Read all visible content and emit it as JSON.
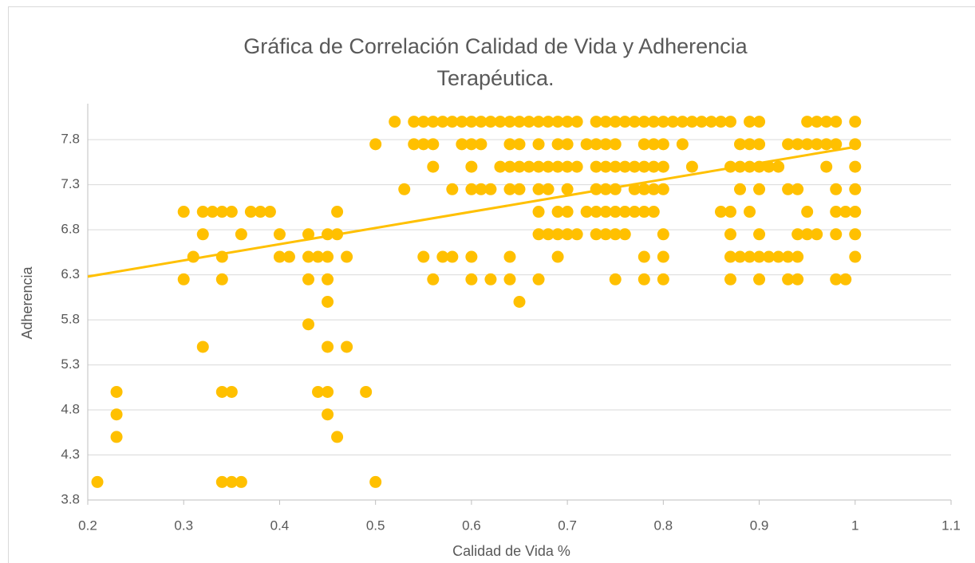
{
  "chart_data": {
    "type": "scatter",
    "title": [
      "Gráfica de Correlación Calidad de Vida y Adherencia",
      "Terapéutica."
    ],
    "xlabel": "Calidad de Vida %",
    "ylabel": "Adherencia",
    "color": "#ffc000",
    "grid": true,
    "xlim": [
      0.2,
      1.1
    ],
    "xticks": [
      0.2,
      0.3,
      0.4,
      0.5,
      0.6,
      0.7,
      0.8,
      0.9,
      1,
      1.1
    ],
    "ylim": [
      3.8,
      8.2
    ],
    "yticks": [
      3.8,
      4.3,
      4.8,
      5.3,
      5.8,
      6.3,
      6.8,
      7.3,
      7.8
    ],
    "trendline": {
      "x": [
        0.2,
        1
      ],
      "y": [
        6.28,
        7.72
      ]
    },
    "x": [
      0.21,
      0.23,
      0.23,
      0.23,
      0.3,
      0.3,
      0.31,
      0.32,
      0.32,
      0.32,
      0.33,
      0.34,
      0.34,
      0.34,
      0.34,
      0.34,
      0.35,
      0.35,
      0.35,
      0.36,
      0.36,
      0.37,
      0.38,
      0.39,
      0.4,
      0.4,
      0.41,
      0.43,
      0.43,
      0.43,
      0.43,
      0.44,
      0.44,
      0.45,
      0.45,
      0.45,
      0.45,
      0.45,
      0.45,
      0.45,
      0.46,
      0.46,
      0.46,
      0.47,
      0.47,
      0.49,
      0.5,
      0.5,
      0.52,
      0.53,
      0.54,
      0.54,
      0.55,
      0.55,
      0.55,
      0.56,
      0.56,
      0.56,
      0.56,
      0.57,
      0.57,
      0.58,
      0.58,
      0.58,
      0.59,
      0.59,
      0.6,
      0.6,
      0.6,
      0.6,
      0.6,
      0.6,
      0.61,
      0.61,
      0.61,
      0.62,
      0.62,
      0.62,
      0.63,
      0.63,
      0.64,
      0.64,
      0.64,
      0.64,
      0.64,
      0.64,
      0.65,
      0.65,
      0.65,
      0.65,
      0.65,
      0.66,
      0.66,
      0.67,
      0.67,
      0.67,
      0.67,
      0.67,
      0.67,
      0.67,
      0.68,
      0.68,
      0.68,
      0.68,
      0.69,
      0.69,
      0.69,
      0.69,
      0.69,
      0.69,
      0.7,
      0.7,
      0.7,
      0.7,
      0.7,
      0.7,
      0.71,
      0.71,
      0.71,
      0.72,
      0.72,
      0.73,
      0.73,
      0.73,
      0.73,
      0.73,
      0.73,
      0.74,
      0.74,
      0.74,
      0.74,
      0.74,
      0.74,
      0.75,
      0.75,
      0.75,
      0.75,
      0.75,
      0.75,
      0.75,
      0.76,
      0.76,
      0.76,
      0.76,
      0.77,
      0.77,
      0.77,
      0.77,
      0.78,
      0.78,
      0.78,
      0.78,
      0.78,
      0.78,
      0.78,
      0.79,
      0.79,
      0.79,
      0.79,
      0.79,
      0.8,
      0.8,
      0.8,
      0.8,
      0.8,
      0.8,
      0.8,
      0.81,
      0.82,
      0.82,
      0.83,
      0.83,
      0.84,
      0.85,
      0.86,
      0.86,
      0.87,
      0.87,
      0.87,
      0.87,
      0.87,
      0.87,
      0.88,
      0.88,
      0.88,
      0.88,
      0.89,
      0.89,
      0.89,
      0.89,
      0.89,
      0.9,
      0.9,
      0.9,
      0.9,
      0.9,
      0.9,
      0.9,
      0.91,
      0.91,
      0.92,
      0.92,
      0.93,
      0.93,
      0.93,
      0.93,
      0.94,
      0.94,
      0.94,
      0.94,
      0.94,
      0.95,
      0.95,
      0.95,
      0.95,
      0.96,
      0.96,
      0.96,
      0.97,
      0.97,
      0.97,
      0.98,
      0.98,
      0.98,
      0.98,
      0.98,
      0.98,
      0.99,
      0.99,
      1,
      1,
      1,
      1,
      1,
      1,
      1
    ],
    "values": [
      4,
      5,
      4.75,
      4.5,
      7,
      6.25,
      6.5,
      7,
      6.75,
      5.5,
      7,
      7,
      6.5,
      6.25,
      5,
      4,
      7,
      5,
      4,
      6.75,
      4,
      7,
      7,
      7,
      6.75,
      6.5,
      6.5,
      6.75,
      6.5,
      6.25,
      5.75,
      6.5,
      5,
      6.75,
      6.5,
      6.25,
      6,
      5.5,
      5,
      4.75,
      7,
      6.75,
      4.5,
      6.5,
      5.5,
      5,
      7.75,
      4,
      8,
      7.25,
      8,
      7.75,
      8,
      7.75,
      6.5,
      8,
      7.75,
      7.5,
      6.25,
      8,
      6.5,
      8,
      7.25,
      6.5,
      8,
      7.75,
      8,
      7.75,
      7.5,
      7.25,
      6.5,
      6.25,
      8,
      7.75,
      7.25,
      8,
      7.25,
      6.25,
      8,
      7.5,
      8,
      7.75,
      7.5,
      7.25,
      6.5,
      6.25,
      8,
      7.75,
      7.5,
      7.25,
      6,
      8,
      7.5,
      8,
      7.75,
      7.5,
      7.25,
      7,
      6.75,
      6.25,
      8,
      7.5,
      7.25,
      6.75,
      8,
      7.75,
      7.5,
      7,
      6.75,
      6.5,
      8,
      7.75,
      7.5,
      7.25,
      7,
      6.75,
      8,
      7.5,
      6.75,
      7.75,
      7,
      8,
      7.75,
      7.5,
      7.25,
      7,
      6.75,
      8,
      7.75,
      7.5,
      7.25,
      7,
      6.75,
      8,
      7.75,
      7.5,
      7.25,
      7,
      6.75,
      6.25,
      8,
      7.5,
      7,
      6.75,
      8,
      7.5,
      7.25,
      7,
      8,
      7.75,
      7.5,
      7.25,
      7,
      6.5,
      6.25,
      8,
      7.75,
      7.5,
      7.25,
      7,
      8,
      7.75,
      7.5,
      7.25,
      6.75,
      6.5,
      6.25,
      8,
      8,
      7.75,
      8,
      7.5,
      8,
      8,
      8,
      7,
      8,
      7.5,
      7,
      6.75,
      6.5,
      6.25,
      7.75,
      7.5,
      7.25,
      6.5,
      8,
      7.75,
      7.5,
      7,
      6.5,
      8,
      7.75,
      7.5,
      7.25,
      6.75,
      6.5,
      6.25,
      7.5,
      6.5,
      7.5,
      6.5,
      7.75,
      7.25,
      6.5,
      6.25,
      7.75,
      7.25,
      6.75,
      6.5,
      6.25,
      8,
      7.75,
      7,
      6.75,
      8,
      7.75,
      6.75,
      8,
      7.75,
      7.5,
      8,
      7.75,
      7.25,
      7,
      6.75,
      6.25,
      7,
      6.25,
      8,
      7.75,
      7.5,
      7.25,
      7,
      6.75,
      6.5
    ]
  }
}
